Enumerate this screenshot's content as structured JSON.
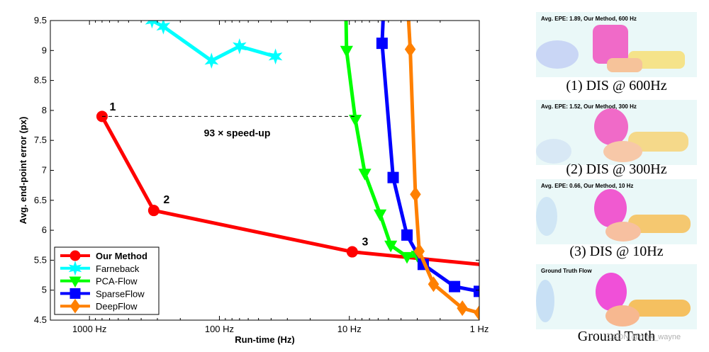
{
  "chart_data": {
    "type": "line",
    "title": "",
    "xlabel": "Run-time (Hz)",
    "ylabel": "Avg. end-point error (px)",
    "x_scale": "log",
    "x_reversed": true,
    "xlim": [
      2000,
      1
    ],
    "ylim": [
      4.5,
      9.5
    ],
    "xticks": [
      {
        "value": 1000,
        "label": "1000 Hz"
      },
      {
        "value": 100,
        "label": "100 Hz"
      },
      {
        "value": 10,
        "label": "10 Hz"
      },
      {
        "value": 1,
        "label": "1 Hz"
      }
    ],
    "yticks": [
      4.5,
      5,
      5.5,
      6,
      6.5,
      7,
      7.5,
      8,
      8.5,
      9,
      9.5
    ],
    "grid": false,
    "legend_position": "bottom-left",
    "series": [
      {
        "name": "Our Method",
        "color": "#ff0000",
        "marker": "circle",
        "bold": true,
        "x": [
          800,
          320,
          9.5,
          1
        ],
        "y": [
          7.9,
          6.33,
          5.64,
          5.43
        ]
      },
      {
        "name": "Farneback",
        "color": "#00ffff",
        "marker": "star",
        "x": [
          330,
          270,
          115,
          70,
          37
        ],
        "y": [
          9.5,
          9.4,
          8.83,
          9.07,
          8.9
        ]
      },
      {
        "name": "PCA-Flow",
        "color": "#00ff00",
        "marker": "triangle-down",
        "x": [
          10.6,
          10.5,
          9.0,
          7.6,
          5.8,
          4.8,
          3.6,
          3.0
        ],
        "y": [
          9.5,
          9.0,
          7.85,
          6.95,
          6.27,
          5.75,
          5.56,
          5.58
        ]
      },
      {
        "name": "SparseFlow",
        "color": "#0000ff",
        "marker": "square",
        "x": [
          5.5,
          5.6,
          4.6,
          3.6,
          2.7,
          1.55,
          1.0
        ],
        "y": [
          9.5,
          9.12,
          6.88,
          5.92,
          5.43,
          5.06,
          4.98
        ]
      },
      {
        "name": "DeepFlow",
        "color": "#ff8000",
        "marker": "diamond",
        "x": [
          3.5,
          3.4,
          3.1,
          2.9,
          2.25,
          1.35,
          1.0
        ],
        "y": [
          9.5,
          9.02,
          6.6,
          5.65,
          5.1,
          4.7,
          4.62
        ]
      }
    ],
    "point_labels": [
      {
        "text": "1",
        "x": 700,
        "y": 8.0
      },
      {
        "text": "2",
        "x": 270,
        "y": 6.45
      },
      {
        "text": "3",
        "x": 8.0,
        "y": 5.75
      }
    ],
    "annotation": {
      "text": "93 × speed-up",
      "y": 7.9,
      "x_from": 800,
      "x_to": 9.0
    }
  },
  "thumbnails": [
    {
      "title": "Avg. EPE: 1.89, Our Method, 600 Hz",
      "caption": "(1) DIS @ 600Hz"
    },
    {
      "title": "Avg. EPE: 1.52, Our Method, 300 Hz",
      "caption": "(2) DIS @ 300Hz"
    },
    {
      "title": "Avg. EPE: 0.66, Our Method, 10 Hz",
      "caption": "(3) DIS @ 10Hz"
    },
    {
      "title": "Ground Truth Flow",
      "caption": "Ground Truth"
    }
  ],
  "watermark": "CSDN @max_wayne"
}
